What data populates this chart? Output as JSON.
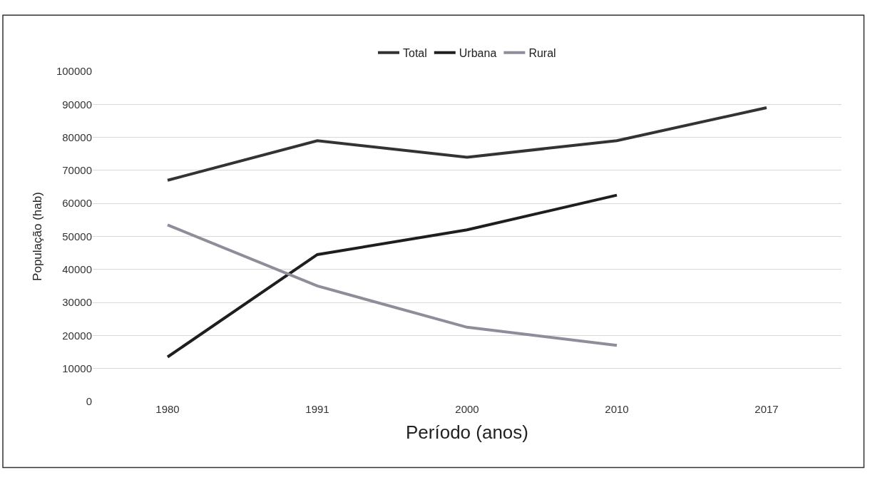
{
  "chart_data": {
    "type": "line",
    "xlabel": "Período (anos)",
    "ylabel": "População (hab)",
    "categories": [
      "1980",
      "1991",
      "2000",
      "2010",
      "2017"
    ],
    "series": [
      {
        "name": "Total",
        "color": "#333333",
        "values": [
          67000,
          79000,
          74000,
          79000,
          89000
        ]
      },
      {
        "name": "Urbana",
        "color": "#1e1e1e",
        "values": [
          13500,
          44500,
          52000,
          62500,
          null
        ]
      },
      {
        "name": "Rural",
        "color": "#8e8e9a",
        "values": [
          53500,
          35000,
          22500,
          17000,
          null
        ]
      }
    ],
    "ylim": [
      0,
      100000
    ],
    "yticks": [
      0,
      10000,
      20000,
      30000,
      40000,
      50000,
      60000,
      70000,
      80000,
      90000,
      100000
    ],
    "grid": "y",
    "legend": "top",
    "marker": "none",
    "line_style": "solid"
  }
}
